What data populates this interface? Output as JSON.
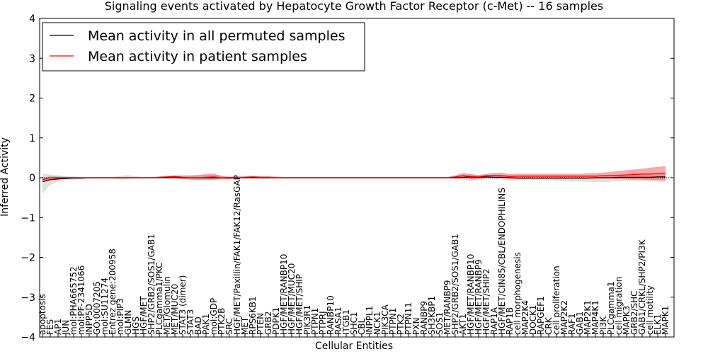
{
  "chart_data": {
    "type": "line",
    "title": "Signaling events activated by Hepatocyte Growth Factor Receptor (c-Met) -- 16 samples",
    "xlabel": "Cellular Entities",
    "ylabel": "Inferred Activity",
    "ylim": [
      -4,
      4
    ],
    "yticks": [
      -4,
      -3,
      -2,
      -1,
      0,
      1,
      2,
      3,
      4
    ],
    "ytick_labels": [
      "−4",
      "−3",
      "−2",
      "−1",
      "0",
      "1",
      "2",
      "3",
      "4"
    ],
    "grid": false,
    "legend_position": "top-left",
    "entities": [
      "apoptosis",
      "FES",
      "AP1",
      "JUN",
      "mol:PHA665752",
      "mol:PF-2341066",
      "INPP5D",
      "GO:0007205",
      "mol:SU11274",
      "Entrez gene:200958",
      "mol:PIP3",
      "GLMN",
      "HGS",
      "HGF/MET",
      "SHP2/GRB2/SOS1/GAB1",
      "PLCgamma1/PKC",
      "MET/Glomulin",
      "MET/MUC20",
      "STAT3 (dimer)",
      "STAT3",
      "BAD",
      "PAK1",
      "mol:GDP",
      "PTK2B",
      "SRC",
      "HGF/MET/Paxillin/FAK1/FAK12/RasGAP",
      "MET",
      "RPS6KB1",
      "PTEN",
      "GRB2",
      "PDPK1",
      "HGF/MET/RANBP10",
      "HGF/MET/MUC20",
      "HGF/MET/SHIP",
      "PIK3R1",
      "PTPN1",
      "PTPRJ",
      "RANBP10",
      "RASA1",
      "ITGB1",
      "SHC1",
      "CBL",
      "INPPL1",
      "NCK1",
      "PIK3CA",
      "PTPN1",
      "PTK2",
      "PTPN11",
      "PXN",
      "RANBP9",
      "SH3KBP1",
      "SOS1",
      "MET/RANBP9",
      "SHP2/GRB2/SOS1/GAB1",
      "AKT1",
      "HGF/MET/RANBP10",
      "HGF/MET/RANBP9",
      "HGF/MET/SHIP2",
      "RAP1A",
      "HGF/MET/CIN85/CBL/ENDOPHILINS",
      "RAP1B",
      "cell morphogenesis",
      "MAP2K4",
      "DOCK1",
      "RAPGEF1",
      "CRK",
      "cell proliferation",
      "MAP2K2",
      "RAF1",
      "GAB1",
      "MAP2K1",
      "MAP4K1",
      "PI3K",
      "PLCgamma1",
      "cell migration",
      "MAPK3",
      "GRB2/SHC",
      "GAB1/CRKL/SHP2/PI3K",
      "cell motility",
      "ELK1",
      "MAPK1"
    ],
    "series": [
      {
        "name": "Mean activity in all permuted samples",
        "color": "#000000",
        "values": [
          -0.1,
          -0.05,
          -0.03,
          -0.02,
          -0.01,
          -0.01,
          0,
          0,
          0,
          0,
          0,
          0,
          0,
          0,
          0,
          0,
          0,
          0,
          0,
          0,
          0,
          0,
          0,
          0,
          0,
          0,
          0,
          0,
          0,
          0,
          0,
          0,
          0,
          0,
          0,
          0,
          0,
          0,
          0,
          0,
          0,
          0,
          0,
          0,
          0,
          0,
          0,
          0,
          0,
          0,
          0,
          0,
          0,
          0,
          0.01,
          0.02,
          0.01,
          0.02,
          0.01,
          0.01,
          0,
          -0.01,
          -0.01,
          -0.01,
          -0.01,
          -0.01,
          -0.01,
          -0.01,
          -0.01,
          -0.01,
          -0.01,
          0,
          0,
          0,
          0.01,
          0.01,
          0.01,
          0.01,
          0.01,
          0.02,
          0.02
        ],
        "band_low": [
          -0.4,
          -0.18,
          -0.1,
          -0.06,
          -0.04,
          -0.03,
          -0.02,
          -0.02,
          -0.02,
          -0.02,
          -0.05,
          -0.03,
          -0.02,
          -0.02,
          -0.02,
          -0.02,
          -0.02,
          -0.02,
          -0.03,
          -0.04,
          -0.05,
          -0.06,
          -0.06,
          -0.05,
          -0.03,
          -0.02,
          -0.02,
          -0.02,
          -0.02,
          -0.02,
          -0.02,
          -0.02,
          -0.02,
          -0.02,
          -0.02,
          -0.02,
          -0.02,
          -0.02,
          -0.02,
          -0.02,
          -0.02,
          -0.02,
          -0.02,
          -0.02,
          -0.02,
          -0.02,
          -0.02,
          -0.02,
          -0.02,
          -0.02,
          -0.02,
          -0.02,
          -0.02,
          -0.02,
          -0.05,
          -0.08,
          -0.04,
          -0.03,
          -0.04,
          -0.05,
          -0.08,
          -0.07,
          -0.06,
          -0.06,
          -0.07,
          -0.07,
          -0.08,
          -0.09,
          -0.1,
          -0.1,
          -0.1,
          -0.11,
          -0.11,
          -0.1,
          -0.09,
          -0.08,
          -0.08,
          -0.08,
          -0.08,
          -0.1,
          -0.1
        ],
        "band_high": [
          0.1,
          0.08,
          0.06,
          0.04,
          0.03,
          0.02,
          0.02,
          0.02,
          0.02,
          0.02,
          0.04,
          0.07,
          0.03,
          0.02,
          0.02,
          0.02,
          0.02,
          0.03,
          0.04,
          0.05,
          0.06,
          0.07,
          0.08,
          0.06,
          0.04,
          0.03,
          0.02,
          0.02,
          0.02,
          0.02,
          0.02,
          0.02,
          0.02,
          0.02,
          0.02,
          0.02,
          0.02,
          0.02,
          0.02,
          0.02,
          0.02,
          0.02,
          0.02,
          0.02,
          0.02,
          0.02,
          0.02,
          0.02,
          0.02,
          0.02,
          0.02,
          0.02,
          0.02,
          0.03,
          0.06,
          0.08,
          0.05,
          0.05,
          0.05,
          0.06,
          0.06,
          0.05,
          0.04,
          0.04,
          0.04,
          0.04,
          0.04,
          0.04,
          0.04,
          0.04,
          0.05,
          0.05,
          0.06,
          0.07,
          0.08,
          0.08,
          0.08,
          0.08,
          0.08,
          0.1,
          0.1
        ]
      },
      {
        "name": "Mean activity in patient samples",
        "color": "#ff0000",
        "values": [
          -0.05,
          0,
          0,
          0,
          0,
          0,
          0,
          0,
          0,
          0,
          0,
          0,
          0,
          0,
          0,
          0.01,
          0.02,
          0.03,
          0.01,
          0,
          0,
          0.01,
          0.02,
          0,
          -0.01,
          0,
          0.01,
          0.02,
          0.01,
          0.01,
          0,
          0,
          0,
          0,
          0,
          0,
          0,
          0,
          0,
          0,
          0,
          0,
          0,
          0,
          0,
          0,
          0,
          0,
          0,
          0,
          0,
          0,
          0,
          0.02,
          0.05,
          0.03,
          0.02,
          0.05,
          0.06,
          0.05,
          0.03,
          0.04,
          0.04,
          0.04,
          0.04,
          0.04,
          0.04,
          0.04,
          0.04,
          0.04,
          0.04,
          0.04,
          0.05,
          0.05,
          0.06,
          0.07,
          0.08,
          0.09,
          0.09,
          0.1,
          0.11
        ],
        "band_low": [
          -0.1,
          -0.04,
          -0.03,
          -0.02,
          -0.02,
          -0.02,
          -0.02,
          -0.02,
          -0.02,
          -0.02,
          -0.02,
          -0.02,
          -0.02,
          -0.02,
          -0.02,
          -0.01,
          -0.01,
          0,
          -0.03,
          -0.05,
          -0.06,
          -0.05,
          -0.05,
          -0.03,
          -0.03,
          -0.02,
          -0.02,
          -0.01,
          -0.02,
          -0.02,
          -0.02,
          -0.02,
          -0.02,
          -0.02,
          -0.02,
          -0.02,
          -0.02,
          -0.02,
          -0.02,
          -0.02,
          -0.02,
          -0.02,
          -0.02,
          -0.02,
          -0.02,
          -0.02,
          -0.02,
          -0.02,
          -0.02,
          -0.02,
          -0.02,
          -0.02,
          -0.02,
          -0.02,
          -0.01,
          -0.03,
          -0.02,
          0,
          0,
          -0.01,
          -0.02,
          -0.02,
          -0.02,
          -0.02,
          -0.02,
          -0.02,
          -0.02,
          -0.02,
          -0.02,
          -0.02,
          -0.02,
          -0.02,
          -0.02,
          -0.02,
          -0.03,
          -0.04,
          -0.05,
          -0.05,
          -0.06,
          -0.06,
          -0.07
        ],
        "band_high": [
          0,
          0.03,
          0.03,
          0.02,
          0.02,
          0.02,
          0.02,
          0.02,
          0.02,
          0.02,
          0.02,
          0.02,
          0.02,
          0.02,
          0.02,
          0.03,
          0.05,
          0.06,
          0.06,
          0.06,
          0.07,
          0.09,
          0.1,
          0.04,
          0.02,
          0.03,
          0.04,
          0.05,
          0.04,
          0.04,
          0.03,
          0.02,
          0.02,
          0.02,
          0.02,
          0.02,
          0.02,
          0.02,
          0.02,
          0.02,
          0.02,
          0.02,
          0.02,
          0.02,
          0.02,
          0.02,
          0.02,
          0.02,
          0.02,
          0.02,
          0.02,
          0.02,
          0.02,
          0.06,
          0.12,
          0.09,
          0.07,
          0.1,
          0.12,
          0.13,
          0.09,
          0.1,
          0.1,
          0.1,
          0.1,
          0.1,
          0.1,
          0.1,
          0.1,
          0.1,
          0.11,
          0.12,
          0.13,
          0.15,
          0.17,
          0.19,
          0.21,
          0.23,
          0.25,
          0.27,
          0.29
        ]
      }
    ]
  }
}
